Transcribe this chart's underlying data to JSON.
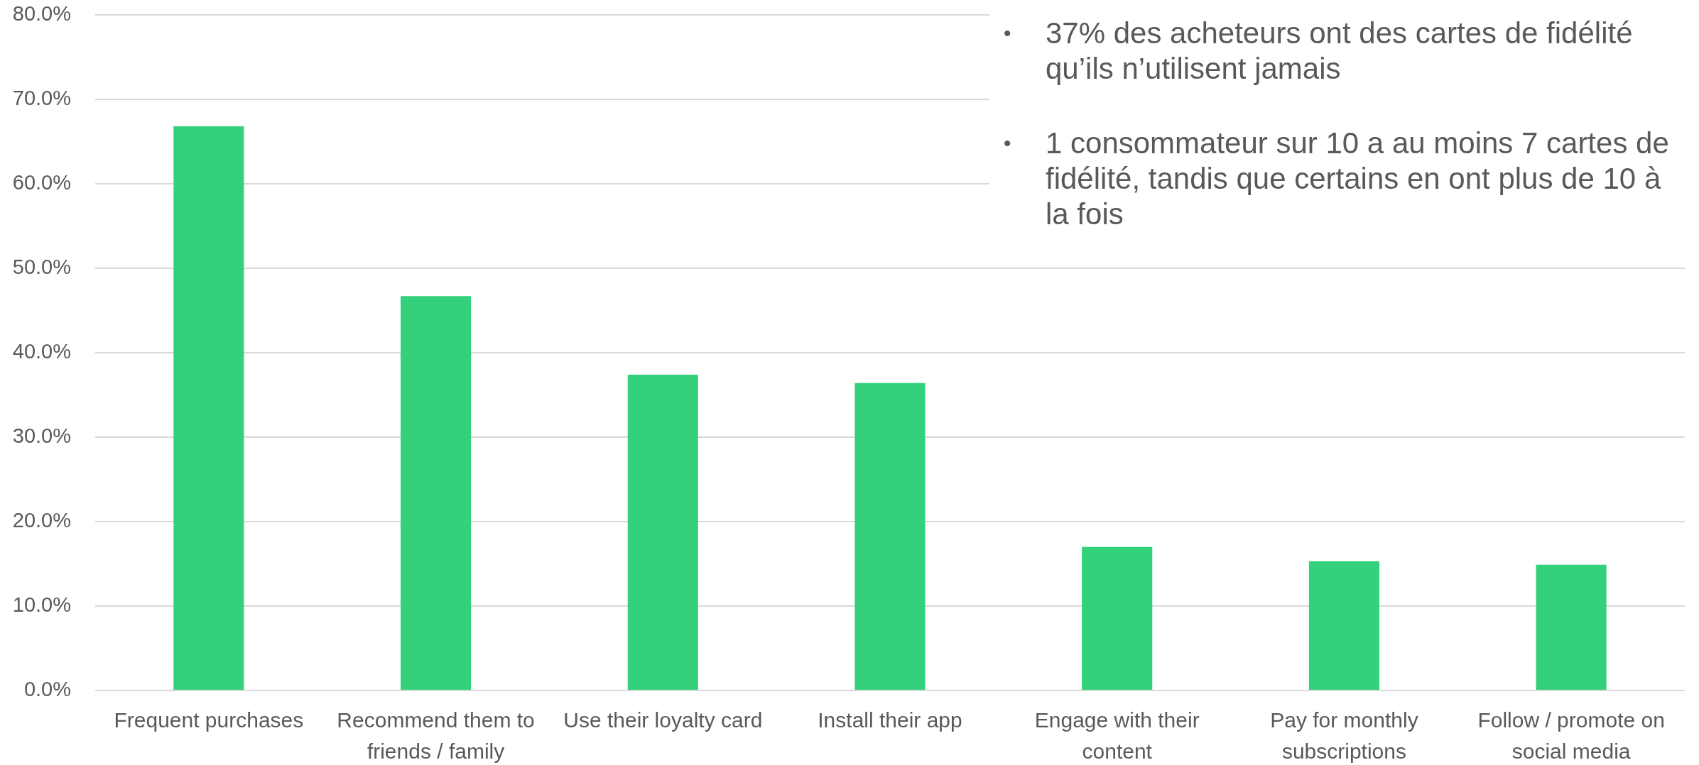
{
  "chart_data": {
    "type": "bar",
    "categories": [
      "Frequent purchases",
      "Recommend them to friends / family",
      "Use their loyalty card",
      "Install their app",
      "Engage with their content",
      "Pay for monthly subscriptions",
      "Follow / promote on social media"
    ],
    "values": [
      66.8,
      46.7,
      37.4,
      36.4,
      17.0,
      15.3,
      14.9
    ],
    "color": "#33d17c",
    "ylim": [
      0,
      80
    ],
    "yticks": [
      {
        "value": 0,
        "label": "0.0%"
      },
      {
        "value": 10,
        "label": "10.0%"
      },
      {
        "value": 20,
        "label": "20.0%"
      },
      {
        "value": 30,
        "label": "30.0%"
      },
      {
        "value": 40,
        "label": "40.0%"
      },
      {
        "value": 50,
        "label": "50.0%"
      },
      {
        "value": 60,
        "label": "60.0%"
      },
      {
        "value": 70,
        "label": "70.0%"
      },
      {
        "value": 80,
        "label": "80.0%"
      }
    ],
    "grid": "y",
    "annotations": [
      "• 37% des acheteurs ont des cartes de fidélité qu’ils n’utilisent jamais",
      "• 1 consommateur sur 10 a au moins 7 cartes de fidélité, tandis que certains en ont plus de 10 à la fois"
    ]
  }
}
